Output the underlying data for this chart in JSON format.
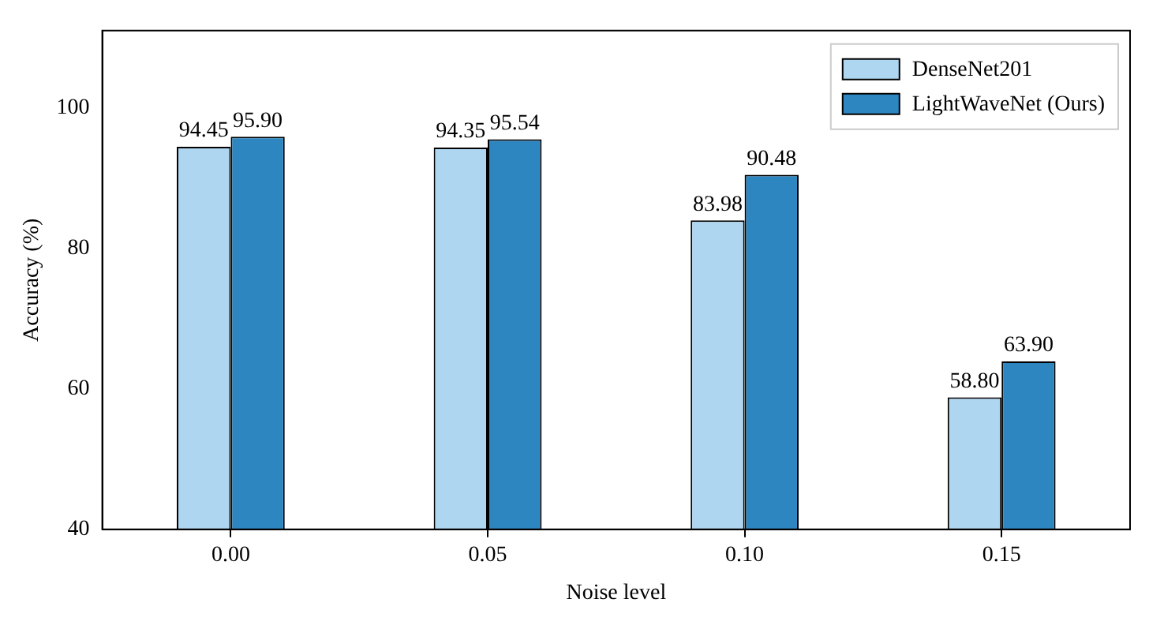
{
  "chart_data": {
    "type": "bar",
    "xlabel": "Noise level",
    "ylabel": "Accuracy (%)",
    "categories": [
      "0.00",
      "0.05",
      "0.10",
      "0.15"
    ],
    "series": [
      {
        "name": "DenseNet201",
        "color": "#aed6f1",
        "values": [
          94.45,
          94.35,
          83.98,
          58.8
        ]
      },
      {
        "name": "LightWaveNet (Ours)",
        "color": "#2e86c1",
        "values": [
          95.9,
          95.54,
          90.48,
          63.9
        ]
      }
    ],
    "value_labels": [
      [
        "94.45",
        "94.35",
        "83.98",
        "58.80"
      ],
      [
        "95.90",
        "95.54",
        "90.48",
        "63.90"
      ]
    ],
    "ylim": [
      40,
      111
    ],
    "yticks": [
      40,
      60,
      80,
      100
    ],
    "grid": false,
    "legend": "top right"
  }
}
